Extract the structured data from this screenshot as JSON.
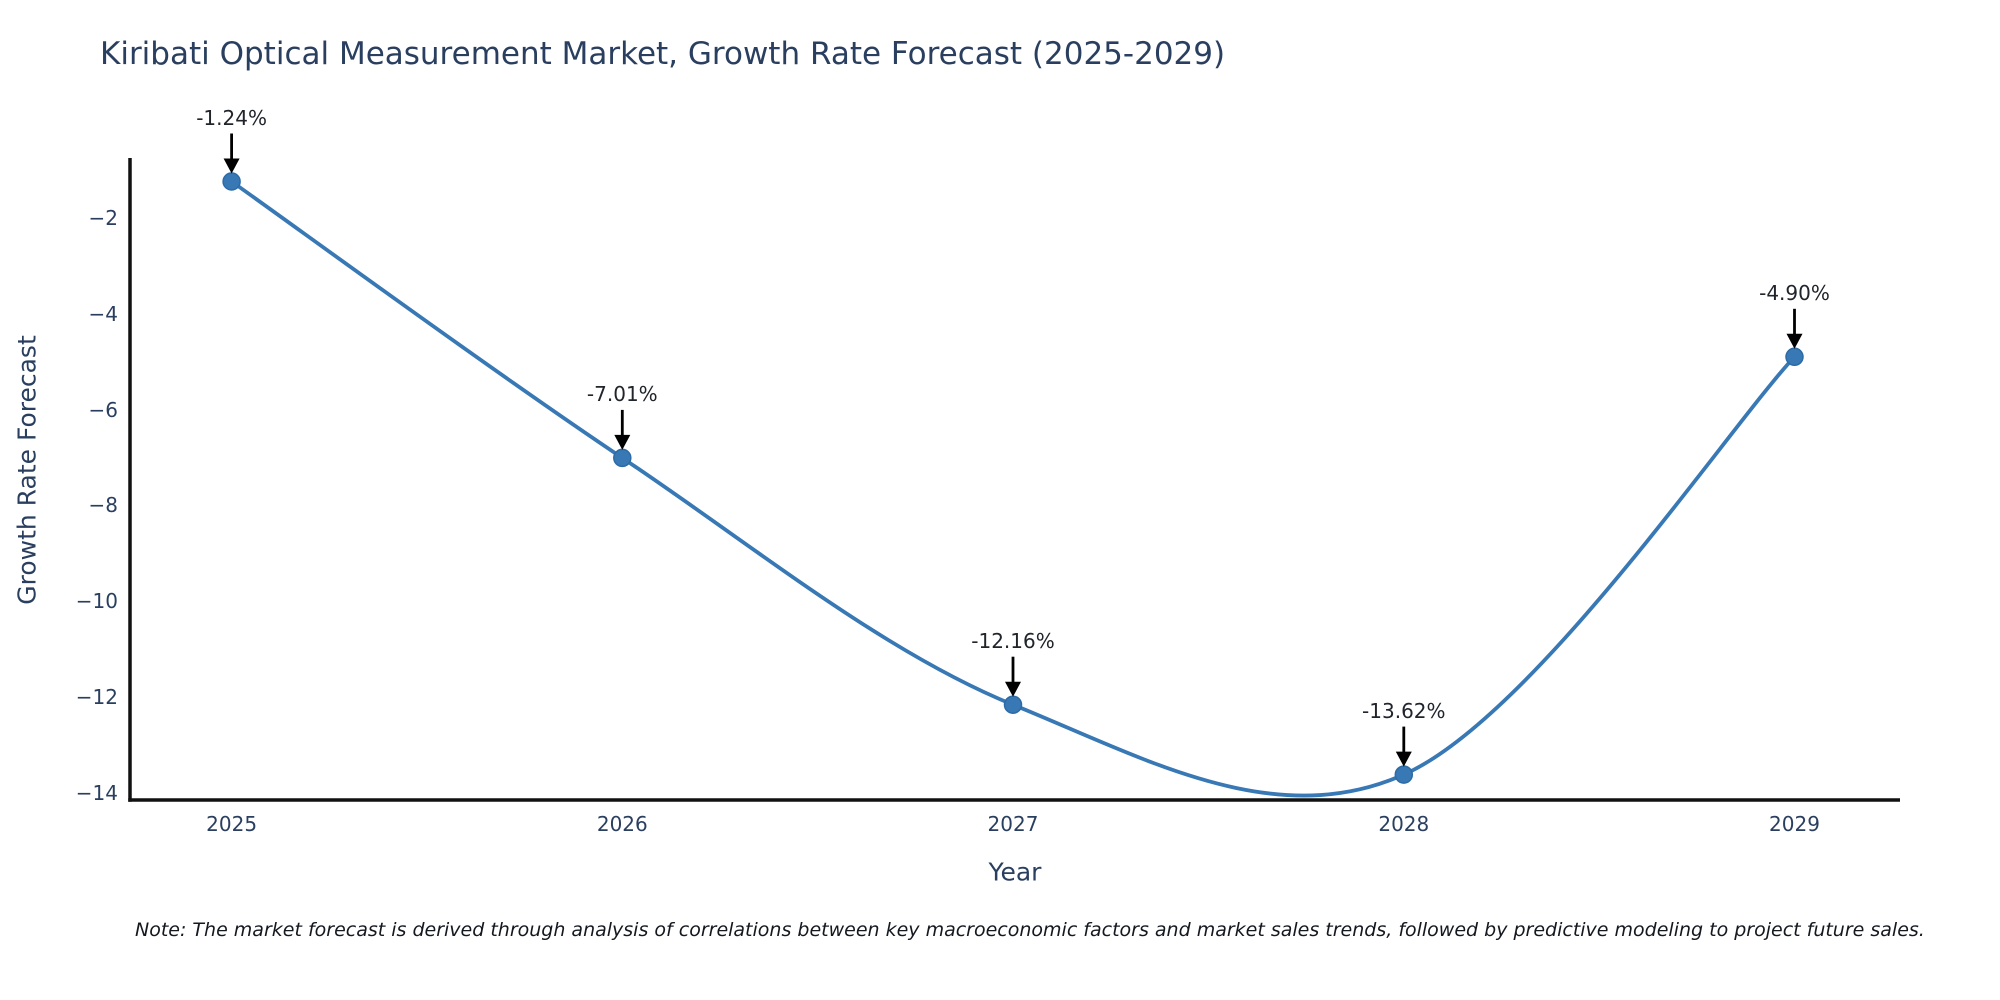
{
  "title": "Kiribati Optical Measurement Market, Growth Rate Forecast (2025-2029)",
  "note": "Note: The market forecast is derived through analysis of correlations between key macroeconomic factors and market sales trends, followed by predictive modeling to project future sales.",
  "chart_data": {
    "type": "line",
    "title": "Kiribati Optical Measurement Market, Growth Rate Forecast (2025-2029)",
    "xlabel": "Year",
    "ylabel": "Growth Rate Forecast",
    "x": [
      2025,
      2026,
      2027,
      2028,
      2029
    ],
    "values": [
      -1.24,
      -7.01,
      -12.16,
      -13.62,
      -4.9
    ],
    "point_labels": [
      "-1.24%",
      "-7.01%",
      "-12.16%",
      "-13.62%",
      "-4.90%"
    ],
    "line_shape": "spline",
    "xticks": [
      2025,
      2026,
      2027,
      2028,
      2029
    ],
    "yticks": [
      -2,
      -4,
      -6,
      -8,
      -10,
      -12,
      -14
    ],
    "xlim": [
      2024.74,
      2029.27
    ],
    "ylim": [
      -14.15,
      -0.75
    ],
    "grid": false,
    "legend": false,
    "colors": {
      "line": "#3878b4",
      "marker_fill": "#3878b4",
      "marker_edge": "#2d6ba6",
      "axis_line": "#111111",
      "axis_text": "#2a3f5f",
      "annotation_arrow": "#000000",
      "annotation_text": "#20242b"
    }
  }
}
